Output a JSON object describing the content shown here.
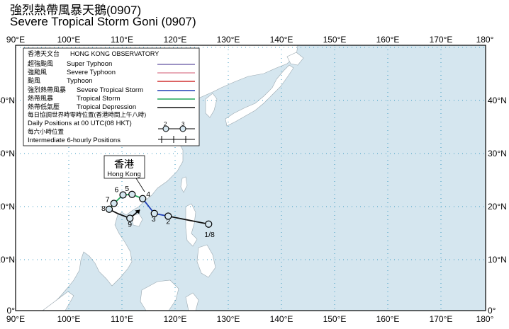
{
  "title_zh": "強烈熱帶風暴天鵝(0907)",
  "title_en": "Severe Tropical Storm Goni (0907)",
  "axes": {
    "lon_ticks": [
      "90°E",
      "100°E",
      "110°E",
      "120°E",
      "130°E",
      "140°E",
      "150°E",
      "160°E",
      "170°E",
      "180°"
    ],
    "lat_ticks": [
      "0°",
      "10°N",
      "20°N",
      "30°N",
      "40°N"
    ]
  },
  "legend": {
    "header_zh": "香港天文台",
    "header_en": "HONG KONG OBSERVATORY",
    "items": [
      {
        "zh": "超強颱風",
        "en": "Super Typhoon",
        "color": "#7b6fb0"
      },
      {
        "zh": "強颱風",
        "en": "Severe Typhoon",
        "color": "#e08fa0"
      },
      {
        "zh": "颱風",
        "en": "Typhoon",
        "color": "#d03030"
      },
      {
        "zh": "強烈熱帶風暴",
        "en": "Severe Tropical Storm",
        "color": "#1f3fb5"
      },
      {
        "zh": "熱帶風暴",
        "en": "Tropical Storm",
        "color": "#1fa85a"
      },
      {
        "zh": "熱帶低氣壓",
        "en": "Tropical Depression",
        "color": "#111111"
      }
    ],
    "daily_zh": "每日協調世界時零時位置(香港時間上午八時)",
    "daily_en": "Daily Positions at 00 UTC(08 HKT)",
    "six_hourly_zh": "每六小時位置",
    "six_hourly_en": "Intermediate 6-hourly Positions",
    "sample_marks": [
      "2",
      "3"
    ]
  },
  "hong_kong_label": {
    "zh": "香港",
    "en": "Hong Kong"
  },
  "track_positions": [
    {
      "label": "1/8",
      "lon": 126.3,
      "lat": 16.3
    },
    {
      "label": "2",
      "lon": 118.7,
      "lat": 17.8
    },
    {
      "label": "3",
      "lon": 116.1,
      "lat": 18.3
    },
    {
      "label": "4",
      "lon": 113.9,
      "lat": 21.1
    },
    {
      "label": "5",
      "lon": 111.9,
      "lat": 21.9
    },
    {
      "label": "6",
      "lon": 110.2,
      "lat": 21.8
    },
    {
      "label": "7",
      "lon": 108.5,
      "lat": 20.2
    },
    {
      "label": "8",
      "lon": 107.6,
      "lat": 19.1
    },
    {
      "label": "9",
      "lon": 111.5,
      "lat": 17.4
    }
  ],
  "colors": {
    "sea": "#d5e6ef",
    "land": "#ffffff",
    "grid": "#3a9ac0",
    "track_ts": "#1fa85a",
    "track_sts": "#1f3fb5",
    "track_td": "#111111"
  }
}
